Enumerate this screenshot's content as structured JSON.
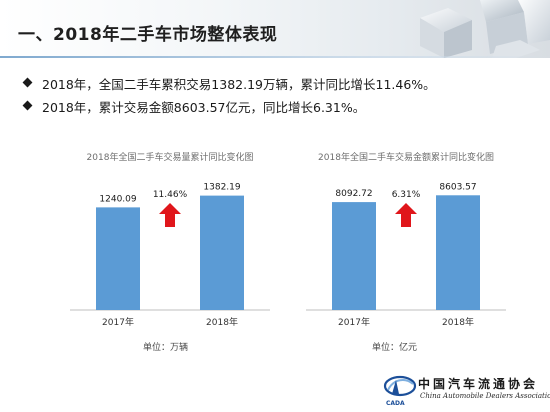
{
  "header": {
    "title": "一、2018年二手车市场整体表现"
  },
  "bullets": [
    "2018年，全国二手车累积交易1382.19万辆，累计同比增长11.46%。",
    "2018年，累计交易金额8603.57亿元，同比增长6.31%。"
  ],
  "chart_data": [
    {
      "type": "bar",
      "title": "2018年全国二手车交易量累计同比变化图",
      "categories": [
        "2017年",
        "2018年"
      ],
      "values": [
        1240.09,
        1382.19
      ],
      "value_labels": [
        "1240.09",
        "1382.19"
      ],
      "growth_label": "11.46%",
      "unit_label": "单位：万辆",
      "ylim": [
        0,
        1450
      ],
      "bar_color": "#5b9bd5",
      "arrow_color": "#e0161b",
      "grid": false
    },
    {
      "type": "bar",
      "title": "2018年全国二手车交易金额累计同比变化图",
      "categories": [
        "2017年",
        "2018年"
      ],
      "values": [
        8092.72,
        8603.57
      ],
      "value_labels": [
        "8092.72",
        "8603.57"
      ],
      "growth_label": "6.31%",
      "unit_label": "单位：亿元",
      "ylim": [
        0,
        9000
      ],
      "bar_color": "#5b9bd5",
      "arrow_color": "#e0161b",
      "grid": false
    }
  ],
  "logo": {
    "name_cn": "中国汽车流通协会",
    "name_en": "China Automobile Dealers Association",
    "abbr": "CADA"
  }
}
